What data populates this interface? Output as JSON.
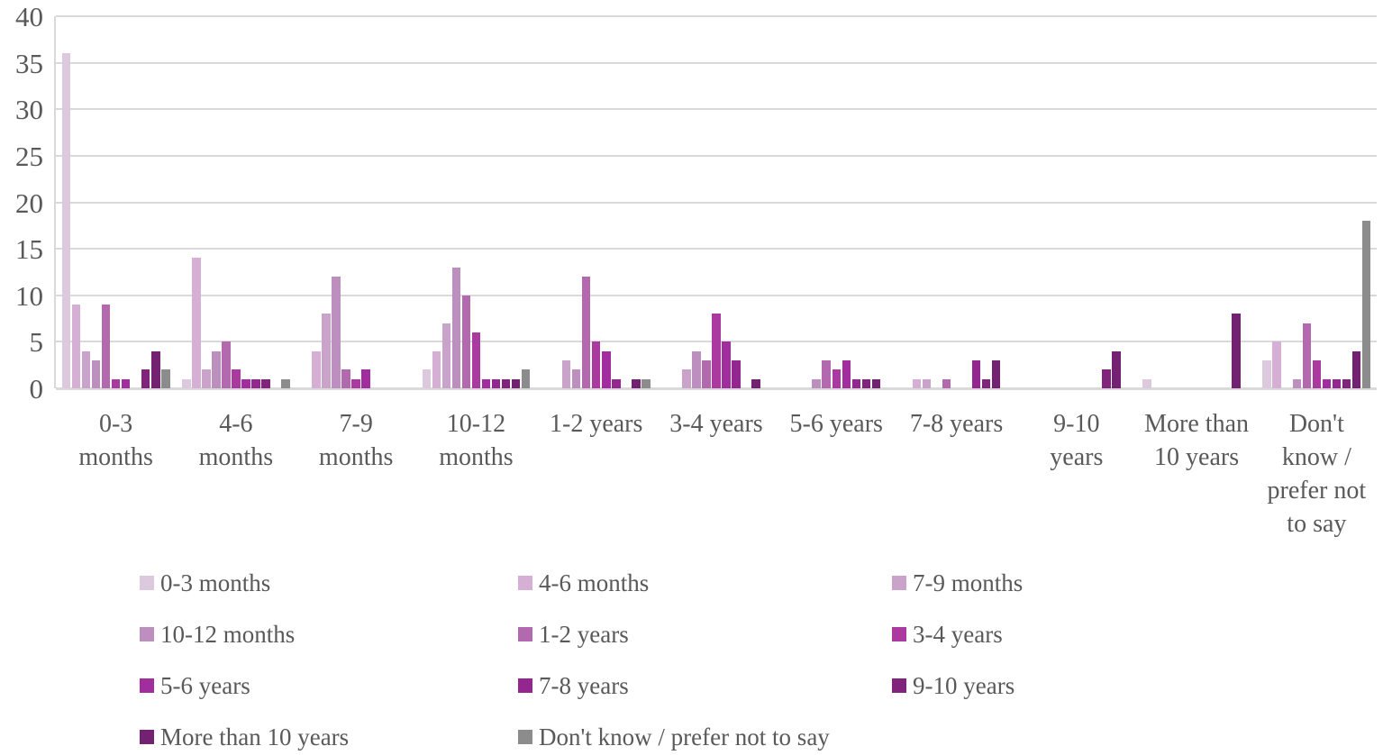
{
  "chart_data": {
    "type": "bar",
    "title": "",
    "xlabel": "",
    "ylabel": "",
    "ylim": [
      0,
      40
    ],
    "yticks": [
      0,
      5,
      10,
      15,
      20,
      25,
      30,
      35,
      40
    ],
    "grid": true,
    "legend_position": "bottom",
    "axis_text_color": "#595959",
    "gridline_color": "#d9d9d9",
    "categories": [
      "0-3 months",
      "4-6 months",
      "7-9 months",
      "10-12 months",
      "1-2 years",
      "3-4 years",
      "5-6 years",
      "7-8 years",
      "9-10 years",
      "More than 10 years",
      "Don't know / prefer not to say"
    ],
    "tick_labels": [
      "0-3\nmonths",
      "4-6\nmonths",
      "7-9\nmonths",
      "10-12\nmonths",
      "1-2 years",
      "3-4 years",
      "5-6 years",
      "7-8 years",
      "9-10\nyears",
      "More than\n10 years",
      "Don't\nknow /\nprefer not\nto say"
    ],
    "series": [
      {
        "name": "0-3 months",
        "color": "#ddc9de",
        "values": [
          36,
          1,
          0,
          2,
          0,
          0,
          0,
          0,
          0,
          1,
          3
        ]
      },
      {
        "name": "4-6 months",
        "color": "#d5b0d4",
        "values": [
          9,
          14,
          4,
          4,
          0,
          0,
          0,
          1,
          0,
          0,
          5
        ]
      },
      {
        "name": "7-9 months",
        "color": "#c9a3ca",
        "values": [
          4,
          2,
          8,
          7,
          3,
          2,
          0,
          1,
          0,
          0,
          0
        ]
      },
      {
        "name": "10-12 months",
        "color": "#bd8fbf",
        "values": [
          3,
          4,
          12,
          13,
          2,
          4,
          1,
          0,
          0,
          0,
          1
        ]
      },
      {
        "name": "1-2 years",
        "color": "#b269ae",
        "values": [
          9,
          5,
          2,
          10,
          12,
          3,
          3,
          1,
          0,
          0,
          7
        ]
      },
      {
        "name": "3-4 years",
        "color": "#ab3aa0",
        "values": [
          1,
          2,
          1,
          6,
          5,
          8,
          2,
          0,
          0,
          0,
          3
        ]
      },
      {
        "name": "5-6 years",
        "color": "#a22d9e",
        "values": [
          1,
          1,
          2,
          1,
          4,
          5,
          3,
          0,
          0,
          0,
          1
        ]
      },
      {
        "name": "7-8 years",
        "color": "#93278f",
        "values": [
          0,
          1,
          0,
          1,
          1,
          3,
          1,
          3,
          0,
          0,
          1
        ]
      },
      {
        "name": "9-10 years",
        "color": "#80247c",
        "values": [
          2,
          1,
          0,
          1,
          0,
          0,
          1,
          1,
          2,
          0,
          1
        ]
      },
      {
        "name": "More than 10 years",
        "color": "#722271",
        "values": [
          4,
          0,
          0,
          1,
          1,
          1,
          1,
          3,
          4,
          8,
          4
        ]
      },
      {
        "name": "Don't know / prefer not to say",
        "color": "#8c8c8c",
        "values": [
          2,
          1,
          0,
          2,
          1,
          0,
          0,
          0,
          0,
          0,
          18
        ]
      }
    ]
  }
}
